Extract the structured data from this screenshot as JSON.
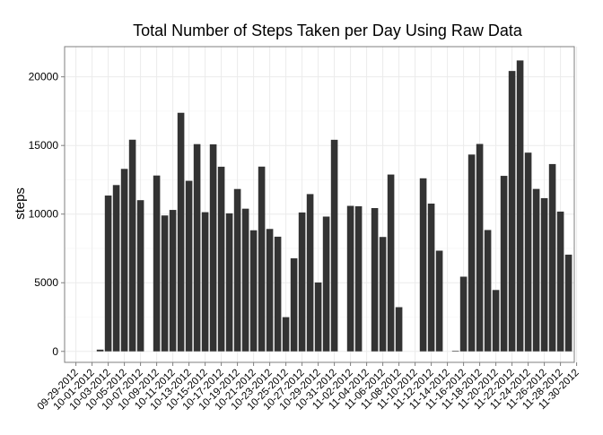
{
  "chart_data": {
    "type": "bar",
    "title": "Total Number of Steps Taken per Day Using Raw Data",
    "xlabel": "",
    "ylabel": "steps",
    "ylim": [
      -800,
      22200
    ],
    "yticks": [
      0,
      5000,
      10000,
      15000,
      20000
    ],
    "xticks": [
      "09-29-2012",
      "10-01-2012",
      "10-03-2012",
      "10-05-2012",
      "10-07-2012",
      "10-09-2012",
      "10-11-2012",
      "10-13-2012",
      "10-15-2012",
      "10-17-2012",
      "10-19-2012",
      "10-21-2012",
      "10-23-2012",
      "10-25-2012",
      "10-27-2012",
      "10-29-2012",
      "10-31-2012",
      "11-02-2012",
      "11-04-2012",
      "11-06-2012",
      "11-08-2012",
      "11-10-2012",
      "11-12-2012",
      "11-14-2012",
      "11-16-2012",
      "11-18-2012",
      "11-20-2012",
      "11-22-2012",
      "11-24-2012",
      "11-26-2012",
      "11-28-2012",
      "11-30-2012"
    ],
    "grid": true,
    "bar_color": "#333333",
    "dates": [
      "10-01-2012",
      "10-02-2012",
      "10-03-2012",
      "10-04-2012",
      "10-05-2012",
      "10-06-2012",
      "10-07-2012",
      "10-08-2012",
      "10-09-2012",
      "10-10-2012",
      "10-11-2012",
      "10-12-2012",
      "10-13-2012",
      "10-14-2012",
      "10-15-2012",
      "10-16-2012",
      "10-17-2012",
      "10-18-2012",
      "10-19-2012",
      "10-20-2012",
      "10-21-2012",
      "10-22-2012",
      "10-23-2012",
      "10-24-2012",
      "10-25-2012",
      "10-26-2012",
      "10-27-2012",
      "10-28-2012",
      "10-29-2012",
      "10-30-2012",
      "10-31-2012",
      "11-01-2012",
      "11-02-2012",
      "11-03-2012",
      "11-04-2012",
      "11-05-2012",
      "11-06-2012",
      "11-07-2012",
      "11-08-2012",
      "11-09-2012",
      "11-10-2012",
      "11-11-2012",
      "11-12-2012",
      "11-13-2012",
      "11-14-2012",
      "11-15-2012",
      "11-16-2012",
      "11-17-2012",
      "11-18-2012",
      "11-19-2012",
      "11-20-2012",
      "11-21-2012",
      "11-22-2012",
      "11-23-2012",
      "11-24-2012",
      "11-25-2012",
      "11-26-2012",
      "11-27-2012",
      "11-28-2012",
      "11-29-2012",
      "11-30-2012"
    ],
    "values": [
      0,
      126,
      11352,
      12116,
      13294,
      15420,
      11015,
      0,
      12811,
      9900,
      10304,
      17382,
      12426,
      15098,
      10139,
      15084,
      13452,
      10056,
      11829,
      10395,
      8821,
      13460,
      8918,
      8355,
      2492,
      6778,
      10119,
      11458,
      5018,
      9819,
      15414,
      0,
      10600,
      10571,
      0,
      10439,
      8334,
      12883,
      3219,
      0,
      0,
      12608,
      10765,
      7336,
      0,
      41,
      5441,
      14339,
      15110,
      8841,
      4472,
      12787,
      20427,
      21194,
      14478,
      11834,
      11162,
      13646,
      10183,
      7047,
      0
    ]
  }
}
